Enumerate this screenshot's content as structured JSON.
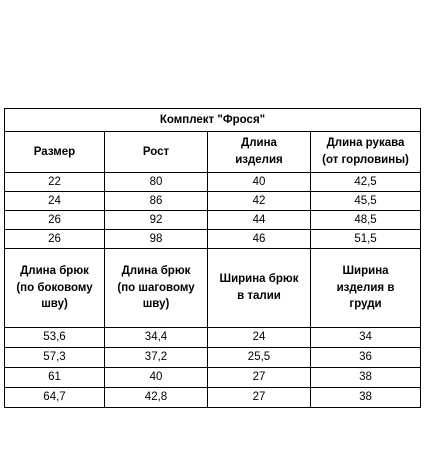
{
  "table": {
    "title": "Комплект \"Фрося\"",
    "header1": [
      "Размер",
      "Рост",
      "Длина\nизделия",
      "Длина рукава\n(от горловины)"
    ],
    "rows1": [
      [
        "22",
        "80",
        "40",
        "42,5"
      ],
      [
        "24",
        "86",
        "42",
        "45,5"
      ],
      [
        "26",
        "92",
        "44",
        "48,5"
      ],
      [
        "26",
        "98",
        "46",
        "51,5"
      ]
    ],
    "header2": [
      "Длина брюк\n(по боковому\nшву)",
      "Длина брюк\n(по шаговому\nшву)",
      "Ширина брюк\nв талии",
      "Ширина\nизделия в\nгруди"
    ],
    "rows2": [
      [
        "53,6",
        "34,4",
        "24",
        "34"
      ],
      [
        "57,3",
        "37,2",
        "25,5",
        "36"
      ],
      [
        "61",
        "40",
        "27",
        "38"
      ],
      [
        "64,7",
        "42,8",
        "27",
        "38"
      ]
    ]
  }
}
